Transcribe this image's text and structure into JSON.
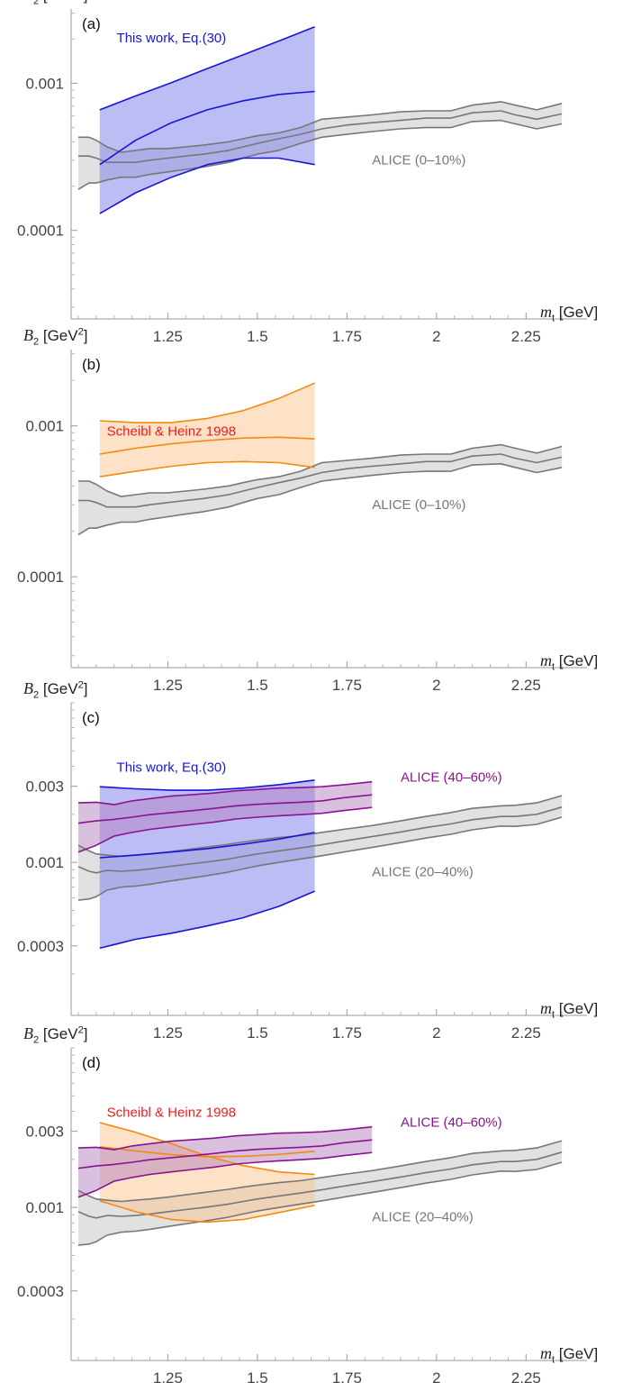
{
  "chart_data": [
    {
      "type": "area",
      "panel_label": "(a)",
      "ylabel": {
        "sym": "B",
        "sub": "2",
        "unit_pre": " [GeV",
        "unit_sup": "2",
        "unit_post": "]"
      },
      "xlabel": {
        "sym": "m",
        "sub": "t",
        "unit": " [GeV]"
      },
      "y_scale": "log",
      "ylim": [
        2.5e-05,
        0.0032
      ],
      "xlim": [
        0.98,
        2.39
      ],
      "x_ticks": [
        1.25,
        1.5,
        1.75,
        2,
        2.25
      ],
      "x_tick_labels": [
        "1.25",
        "1.5",
        "1.75",
        "2",
        "2.25"
      ],
      "y_ticks": [
        0.0001,
        0.001
      ],
      "y_tick_labels": [
        "0.0001",
        "0.001"
      ],
      "series": [
        {
          "name": "ALICE (0–10%)",
          "color": "#777777",
          "fill": "#c4c4c4",
          "label_at": [
            1.82,
            0.00028
          ],
          "x": [
            1.0,
            1.03,
            1.05,
            1.08,
            1.12,
            1.16,
            1.2,
            1.25,
            1.3,
            1.35,
            1.42,
            1.46,
            1.5,
            1.56,
            1.62,
            1.68,
            1.75,
            1.82,
            1.9,
            1.97,
            2.04,
            2.1,
            2.18,
            2.22,
            2.28,
            2.35
          ],
          "upper": [
            0.00043,
            0.00043,
            0.00041,
            0.00037,
            0.00034,
            0.00035,
            0.00036,
            0.00036,
            0.00037,
            0.00038,
            0.0004,
            0.00042,
            0.00044,
            0.00046,
            0.0005,
            0.00057,
            0.00059,
            0.00061,
            0.00064,
            0.00065,
            0.00065,
            0.00071,
            0.00075,
            0.00071,
            0.00066,
            0.00073
          ],
          "mid": [
            0.00032,
            0.00032,
            0.00031,
            0.00029,
            0.00029,
            0.00029,
            0.0003,
            0.00031,
            0.00032,
            0.00033,
            0.00035,
            0.00037,
            0.00039,
            0.00042,
            0.00045,
            0.00049,
            0.00052,
            0.00054,
            0.00056,
            0.00058,
            0.00058,
            0.00063,
            0.00065,
            0.00061,
            0.00057,
            0.00062
          ],
          "lower": [
            0.00019,
            0.00021,
            0.00021,
            0.00022,
            0.00023,
            0.00023,
            0.00024,
            0.00025,
            0.00026,
            0.00027,
            0.00029,
            0.00031,
            0.00033,
            0.00035,
            0.00039,
            0.00043,
            0.00045,
            0.00047,
            0.00049,
            0.0005,
            0.0005,
            0.00055,
            0.00056,
            0.00053,
            0.00049,
            0.00053
          ]
        },
        {
          "name": "This work, Eq.(30)",
          "color": "#1515d8",
          "fill": "#7b7bee",
          "label_at": [
            1.26,
            0.0019
          ],
          "x": [
            1.06,
            1.16,
            1.26,
            1.36,
            1.46,
            1.56,
            1.66
          ],
          "upper": [
            0.00066,
            0.00082,
            0.00101,
            0.00126,
            0.00156,
            0.00194,
            0.00242
          ],
          "mid": [
            0.00028,
            0.00041,
            0.00054,
            0.00066,
            0.00076,
            0.00084,
            0.00088
          ],
          "lower": [
            0.00013,
            0.00018,
            0.00023,
            0.00028,
            0.00031,
            0.00031,
            0.00028
          ]
        }
      ]
    },
    {
      "type": "area",
      "panel_label": "(b)",
      "ylabel": {
        "sym": "B",
        "sub": "2",
        "unit_pre": " [GeV",
        "unit_sup": "2",
        "unit_post": "]"
      },
      "xlabel": {
        "sym": "m",
        "sub": "t",
        "unit": " [GeV]"
      },
      "y_scale": "log",
      "ylim": [
        2.5e-05,
        0.0032
      ],
      "xlim": [
        0.98,
        2.39
      ],
      "x_ticks": [
        1.25,
        1.5,
        1.75,
        2,
        2.25
      ],
      "x_tick_labels": [
        "1.25",
        "1.5",
        "1.75",
        "2",
        "2.25"
      ],
      "y_ticks": [
        0.0001,
        0.001
      ],
      "y_tick_labels": [
        "0.0001",
        "0.001"
      ],
      "series": [
        {
          "name": "ALICE (0–10%)",
          "color": "#777777",
          "fill": "#c4c4c4",
          "label_at": [
            1.82,
            0.00028
          ],
          "x": [
            1.0,
            1.03,
            1.05,
            1.08,
            1.12,
            1.16,
            1.2,
            1.25,
            1.3,
            1.35,
            1.42,
            1.46,
            1.5,
            1.56,
            1.62,
            1.68,
            1.75,
            1.82,
            1.9,
            1.97,
            2.04,
            2.1,
            2.18,
            2.22,
            2.28,
            2.35
          ],
          "upper": [
            0.00043,
            0.00043,
            0.00041,
            0.00037,
            0.00034,
            0.00035,
            0.00036,
            0.00036,
            0.00037,
            0.00038,
            0.0004,
            0.00042,
            0.00044,
            0.00046,
            0.0005,
            0.00057,
            0.00059,
            0.00061,
            0.00064,
            0.00065,
            0.00065,
            0.00071,
            0.00075,
            0.00071,
            0.00066,
            0.00073
          ],
          "mid": [
            0.00032,
            0.00032,
            0.00031,
            0.00029,
            0.00029,
            0.00029,
            0.0003,
            0.00031,
            0.00032,
            0.00033,
            0.00035,
            0.00037,
            0.00039,
            0.00042,
            0.00045,
            0.00049,
            0.00052,
            0.00054,
            0.00056,
            0.00058,
            0.00058,
            0.00063,
            0.00065,
            0.00061,
            0.00057,
            0.00062
          ],
          "lower": [
            0.00019,
            0.00021,
            0.00021,
            0.00022,
            0.00023,
            0.00023,
            0.00024,
            0.00025,
            0.00026,
            0.00027,
            0.00029,
            0.00031,
            0.00033,
            0.00035,
            0.00039,
            0.00043,
            0.00045,
            0.00047,
            0.00049,
            0.0005,
            0.0005,
            0.00055,
            0.00056,
            0.00053,
            0.00049,
            0.00053
          ]
        },
        {
          "name": "Scheibl & Heinz 1998",
          "color": "#f28a10",
          "fill": "#fbc690",
          "text_color": "#ee1c1c",
          "label_at": [
            1.26,
            0.00086
          ],
          "x": [
            1.06,
            1.16,
            1.26,
            1.36,
            1.46,
            1.56,
            1.66
          ],
          "upper": [
            0.00108,
            0.00105,
            0.00105,
            0.00112,
            0.00126,
            0.00152,
            0.00192
          ],
          "mid": [
            0.00065,
            0.00071,
            0.00076,
            0.0008,
            0.00083,
            0.00084,
            0.00082
          ],
          "lower": [
            0.00046,
            0.0005,
            0.00054,
            0.00057,
            0.00058,
            0.00057,
            0.00053
          ]
        }
      ]
    },
    {
      "type": "area",
      "panel_label": "(c)",
      "ylabel": {
        "sym": "B",
        "sub": "2",
        "unit_pre": " [GeV",
        "unit_sup": "2",
        "unit_post": "]"
      },
      "xlabel": {
        "sym": "m",
        "sub": "t",
        "unit": " [GeV]"
      },
      "y_scale": "log",
      "ylim": [
        0.00011,
        0.01
      ],
      "xlim": [
        0.98,
        2.39
      ],
      "x_ticks": [
        1.25,
        1.5,
        1.75,
        2,
        2.25
      ],
      "x_tick_labels": [
        "1.25",
        "1.5",
        "1.75",
        "2",
        "2.25"
      ],
      "y_ticks": [
        0.0003,
        0.001,
        0.003
      ],
      "y_tick_labels": [
        "0.0003",
        "0.001",
        "0.003"
      ],
      "series": [
        {
          "name": "ALICE (20–40%)",
          "color": "#777777",
          "fill": "#c4c4c4",
          "label_at": [
            1.82,
            0.00082
          ],
          "x": [
            1.0,
            1.03,
            1.05,
            1.08,
            1.12,
            1.16,
            1.2,
            1.25,
            1.3,
            1.35,
            1.42,
            1.46,
            1.5,
            1.56,
            1.62,
            1.68,
            1.75,
            1.82,
            1.9,
            1.97,
            2.04,
            2.1,
            2.18,
            2.22,
            2.28,
            2.35
          ],
          "upper": [
            0.00128,
            0.00118,
            0.00113,
            0.00111,
            0.00109,
            0.00111,
            0.00113,
            0.00116,
            0.0012,
            0.00124,
            0.0013,
            0.00134,
            0.00138,
            0.00143,
            0.00147,
            0.00154,
            0.00162,
            0.0017,
            0.00182,
            0.00194,
            0.00205,
            0.00218,
            0.00226,
            0.00228,
            0.00236,
            0.00262
          ],
          "mid": [
            0.00094,
            0.00088,
            0.00086,
            0.00089,
            0.00088,
            0.00089,
            0.00091,
            0.00094,
            0.00097,
            0.001,
            0.00105,
            0.00109,
            0.00113,
            0.00118,
            0.00123,
            0.00129,
            0.00137,
            0.00145,
            0.00155,
            0.00165,
            0.00174,
            0.00185,
            0.00194,
            0.00194,
            0.002,
            0.00222
          ],
          "lower": [
            0.00058,
            0.00059,
            0.00061,
            0.00067,
            0.0007,
            0.00071,
            0.00073,
            0.00076,
            0.00079,
            0.00082,
            0.00087,
            0.00091,
            0.00095,
            0.001,
            0.00105,
            0.0011,
            0.00117,
            0.00124,
            0.00133,
            0.00142,
            0.0015,
            0.0016,
            0.00169,
            0.00168,
            0.00173,
            0.00192
          ]
        },
        {
          "name": "This work, Eq.(30)",
          "color": "#1515d8",
          "fill": "#7b7bee",
          "label_at": [
            1.26,
            0.0037
          ],
          "x": [
            1.06,
            1.16,
            1.26,
            1.36,
            1.46,
            1.56,
            1.66
          ],
          "upper": [
            0.00298,
            0.00289,
            0.00283,
            0.00283,
            0.00292,
            0.00307,
            0.00328
          ],
          "mid": [
            0.00107,
            0.00111,
            0.00116,
            0.00122,
            0.0013,
            0.0014,
            0.00154
          ],
          "lower": [
            0.00029,
            0.00033,
            0.00036,
            0.0004,
            0.00045,
            0.00053,
            0.00066
          ]
        },
        {
          "name": "ALICE (40–60%)",
          "color": "#8a138f",
          "fill": "#b382c0",
          "label_at": [
            1.9,
            0.0032
          ],
          "x": [
            1.0,
            1.05,
            1.1,
            1.15,
            1.2,
            1.26,
            1.32,
            1.38,
            1.44,
            1.5,
            1.56,
            1.62,
            1.68,
            1.74,
            1.82
          ],
          "upper": [
            0.00236,
            0.00238,
            0.0023,
            0.00243,
            0.00251,
            0.0026,
            0.00266,
            0.00272,
            0.00281,
            0.00286,
            0.00292,
            0.00294,
            0.00298,
            0.00306,
            0.0032
          ],
          "mid": [
            0.00176,
            0.00182,
            0.00186,
            0.00192,
            0.00199,
            0.00205,
            0.00211,
            0.00218,
            0.00226,
            0.00231,
            0.00235,
            0.00238,
            0.00243,
            0.00254,
            0.00265
          ],
          "lower": [
            0.00116,
            0.00128,
            0.00146,
            0.00154,
            0.00161,
            0.00167,
            0.00173,
            0.00179,
            0.00187,
            0.00192,
            0.00196,
            0.00199,
            0.00203,
            0.00211,
            0.00221
          ]
        }
      ]
    },
    {
      "type": "area",
      "panel_label": "(d)",
      "ylabel": {
        "sym": "B",
        "sub": "2",
        "unit_pre": " [GeV",
        "unit_sup": "2",
        "unit_post": "]"
      },
      "xlabel": {
        "sym": "m",
        "sub": "t",
        "unit": " [GeV]"
      },
      "y_scale": "log",
      "ylim": [
        0.00011,
        0.01
      ],
      "xlim": [
        0.98,
        2.39
      ],
      "x_ticks": [
        1.25,
        1.5,
        1.75,
        2,
        2.25
      ],
      "x_tick_labels": [
        "1.25",
        "1.5",
        "1.75",
        "2",
        "2.25"
      ],
      "y_ticks": [
        0.0003,
        0.001,
        0.003
      ],
      "y_tick_labels": [
        "0.0003",
        "0.001",
        "0.003"
      ],
      "series": [
        {
          "name": "ALICE (20–40%)",
          "color": "#777777",
          "fill": "#c4c4c4",
          "label_at": [
            1.82,
            0.00082
          ],
          "x": [
            1.0,
            1.03,
            1.05,
            1.08,
            1.12,
            1.16,
            1.2,
            1.25,
            1.3,
            1.35,
            1.42,
            1.46,
            1.5,
            1.56,
            1.62,
            1.68,
            1.75,
            1.82,
            1.9,
            1.97,
            2.04,
            2.1,
            2.18,
            2.22,
            2.28,
            2.35
          ],
          "upper": [
            0.00128,
            0.00118,
            0.00113,
            0.00111,
            0.00109,
            0.00111,
            0.00113,
            0.00116,
            0.0012,
            0.00124,
            0.0013,
            0.00134,
            0.00138,
            0.00143,
            0.00147,
            0.00154,
            0.00162,
            0.0017,
            0.00182,
            0.00194,
            0.00205,
            0.00218,
            0.00226,
            0.00228,
            0.00236,
            0.00262
          ],
          "mid": [
            0.00094,
            0.00088,
            0.00086,
            0.00089,
            0.00088,
            0.00089,
            0.00091,
            0.00094,
            0.00097,
            0.001,
            0.00105,
            0.00109,
            0.00113,
            0.00118,
            0.00123,
            0.00129,
            0.00137,
            0.00145,
            0.00155,
            0.00165,
            0.00174,
            0.00185,
            0.00194,
            0.00194,
            0.002,
            0.00222
          ],
          "lower": [
            0.00058,
            0.00059,
            0.00061,
            0.00067,
            0.0007,
            0.00071,
            0.00073,
            0.00076,
            0.00079,
            0.00082,
            0.00087,
            0.00091,
            0.00095,
            0.001,
            0.00105,
            0.0011,
            0.00117,
            0.00124,
            0.00133,
            0.00142,
            0.0015,
            0.0016,
            0.00169,
            0.00168,
            0.00173,
            0.00192
          ]
        },
        {
          "name": "Scheibl & Heinz 1998",
          "color": "#f28a10",
          "fill": "#fbc690",
          "text_color": "#ee1c1c",
          "label_at": [
            1.26,
            0.0037
          ],
          "x": [
            1.06,
            1.16,
            1.26,
            1.36,
            1.46,
            1.56,
            1.66
          ],
          "upper": [
            0.0034,
            0.00296,
            0.00251,
            0.0021,
            0.00183,
            0.00167,
            0.00161
          ],
          "mid": [
            0.0024,
            0.00226,
            0.00214,
            0.00208,
            0.00209,
            0.00215,
            0.00225
          ],
          "lower": [
            0.0011,
            0.00094,
            0.00084,
            0.00081,
            0.00084,
            0.00093,
            0.00103
          ]
        },
        {
          "name": "ALICE (40–60%)",
          "color": "#8a138f",
          "fill": "#b382c0",
          "label_at": [
            1.9,
            0.0032
          ],
          "x": [
            1.0,
            1.05,
            1.1,
            1.15,
            1.2,
            1.26,
            1.32,
            1.38,
            1.44,
            1.5,
            1.56,
            1.62,
            1.68,
            1.74,
            1.82
          ],
          "upper": [
            0.00236,
            0.00238,
            0.0023,
            0.00243,
            0.00251,
            0.0026,
            0.00266,
            0.00272,
            0.00281,
            0.00286,
            0.00292,
            0.00294,
            0.00298,
            0.00306,
            0.0032
          ],
          "mid": [
            0.00176,
            0.00182,
            0.00186,
            0.00192,
            0.00199,
            0.00205,
            0.00211,
            0.00218,
            0.00226,
            0.00231,
            0.00235,
            0.00238,
            0.00243,
            0.00254,
            0.00265
          ],
          "lower": [
            0.00116,
            0.00128,
            0.00146,
            0.00154,
            0.00161,
            0.00167,
            0.00173,
            0.00179,
            0.00187,
            0.00192,
            0.00196,
            0.00199,
            0.00203,
            0.00211,
            0.00221
          ]
        }
      ]
    }
  ]
}
